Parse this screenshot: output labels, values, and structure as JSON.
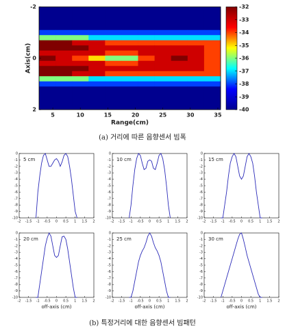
{
  "chart_data": [
    {
      "type": "heatmap",
      "xlabel": "Range(cm)",
      "ylabel": "Axis(cm)",
      "x": [
        4,
        7,
        10,
        13,
        16,
        19,
        22,
        25,
        28,
        31,
        34
      ],
      "y": [
        -1.8,
        -1.6,
        -1.4,
        -1.2,
        -1.0,
        -0.8,
        -0.6,
        -0.4,
        -0.2,
        0,
        0.2,
        0.4,
        0.6,
        0.8,
        1.0,
        1.2,
        1.4,
        1.6,
        1.8
      ],
      "values": [
        [
          -40,
          -40,
          -40,
          -40,
          -40,
          -40,
          -40,
          -40,
          -40,
          -40,
          -40
        ],
        [
          -40,
          -40,
          -40,
          -40,
          -40,
          -40,
          -40,
          -40,
          -40,
          -40,
          -40
        ],
        [
          -40,
          -40,
          -40,
          -40,
          -40,
          -40,
          -40,
          -40,
          -40,
          -40,
          -40
        ],
        [
          -40,
          -40,
          -40,
          -40,
          -40,
          -40,
          -40,
          -40,
          -40,
          -40,
          -40
        ],
        [
          -38,
          -38,
          -38,
          -38,
          -38,
          -38,
          -38,
          -38,
          -38,
          -38,
          -38
        ],
        [
          -36,
          -36,
          -36,
          -37,
          -37,
          -37,
          -37,
          -37,
          -37,
          -37,
          -37
        ],
        [
          -32,
          -32,
          -33,
          -33,
          -34,
          -34,
          -34,
          -34,
          -34,
          -34,
          -34
        ],
        [
          -32,
          -32,
          -32,
          -33,
          -33,
          -33,
          -33,
          -33,
          -33,
          -33,
          -34
        ],
        [
          -33,
          -33,
          -33,
          -33,
          -34,
          -34,
          -33,
          -33,
          -33,
          -33,
          -34
        ],
        [
          -32,
          -33,
          -34,
          -35,
          -36,
          -36,
          -34,
          -33,
          -32,
          -33,
          -34
        ],
        [
          -33,
          -33,
          -33,
          -33,
          -34,
          -34,
          -33,
          -33,
          -33,
          -33,
          -34
        ],
        [
          -32,
          -32,
          -32,
          -33,
          -33,
          -33,
          -33,
          -33,
          -33,
          -33,
          -34
        ],
        [
          -32,
          -32,
          -33,
          -33,
          -34,
          -34,
          -34,
          -34,
          -34,
          -34,
          -34
        ],
        [
          -36,
          -36,
          -36,
          -37,
          -37,
          -37,
          -37,
          -37,
          -37,
          -37,
          -37
        ],
        [
          -38,
          -38,
          -38,
          -38,
          -38,
          -38,
          -38,
          -38,
          -38,
          -38,
          -38
        ],
        [
          -40,
          -40,
          -40,
          -40,
          -40,
          -40,
          -40,
          -40,
          -40,
          -40,
          -40
        ],
        [
          -40,
          -40,
          -40,
          -40,
          -40,
          -40,
          -40,
          -40,
          -40,
          -40,
          -40
        ],
        [
          -40,
          -40,
          -40,
          -40,
          -40,
          -40,
          -40,
          -40,
          -40,
          -40,
          -40
        ],
        [
          -40,
          -40,
          -40,
          -40,
          -40,
          -40,
          -40,
          -40,
          -40,
          -40,
          -40
        ]
      ],
      "xlim": [
        2.5,
        35.5
      ],
      "xticks": [
        5,
        10,
        15,
        20,
        25,
        30,
        35
      ],
      "ylim": [
        -2,
        2
      ],
      "yticks": [
        -2,
        0,
        2
      ],
      "y_inverted": true,
      "colorscale": [
        "#00008f",
        "#0000ff",
        "#00ffff",
        "#ffff00",
        "#ff0000",
        "#800000"
      ],
      "clim": [
        -40,
        -32
      ],
      "cticks": [
        -32,
        -33,
        -34,
        -35,
        -36,
        -37,
        -38,
        -39,
        -40
      ]
    },
    {
      "type": "line",
      "label": "5 cm",
      "color": "#2a2ab8",
      "x": [
        -1.1,
        -1,
        -0.9,
        -0.8,
        -0.7,
        -0.6,
        -0.5,
        -0.4,
        -0.3,
        -0.2,
        -0.1,
        0,
        0.1,
        0.2,
        0.3,
        0.4,
        0.5,
        0.6,
        0.7,
        0.8,
        0.9,
        1,
        1.1
      ],
      "values": [
        -10,
        -6,
        -3.5,
        -1.5,
        -0.3,
        0,
        -1,
        -2,
        -2,
        -1.5,
        -1,
        -0.8,
        -1.2,
        -2,
        -1.3,
        -0.3,
        0,
        -0.5,
        -2,
        -4,
        -6.5,
        -9,
        -10
      ],
      "xlim": [
        -2,
        2
      ],
      "xticks": [
        -2,
        -1.5,
        -1,
        -0.5,
        0,
        0.5,
        1,
        1.5,
        2
      ],
      "ylim": [
        -10,
        0
      ],
      "yticks": [
        0,
        -1,
        -2,
        -3,
        -4,
        -5,
        -6,
        -7,
        -8,
        -9,
        -10
      ]
    },
    {
      "type": "line",
      "label": "10 cm",
      "color": "#2a2ab8",
      "x": [
        -1.1,
        -1,
        -0.9,
        -0.8,
        -0.7,
        -0.6,
        -0.5,
        -0.4,
        -0.3,
        -0.2,
        -0.1,
        0,
        0.1,
        0.2,
        0.3,
        0.4,
        0.5,
        0.6,
        0.7,
        0.8,
        0.9,
        1,
        1.1
      ],
      "values": [
        -10,
        -8,
        -5,
        -2.5,
        -0.8,
        0,
        -0.3,
        -1.5,
        -2.5,
        -2.3,
        -1.2,
        -1,
        -1.2,
        -2.3,
        -2.5,
        -1.5,
        -0.3,
        0,
        -0.8,
        -2.5,
        -5,
        -8,
        -10
      ],
      "xlim": [
        -2,
        2
      ],
      "xticks": [
        -2,
        -1.5,
        -1,
        -0.5,
        0,
        0.5,
        1,
        1.5,
        2
      ],
      "ylim": [
        -10,
        0
      ],
      "yticks": [
        0,
        -1,
        -2,
        -3,
        -4,
        -5,
        -6,
        -7,
        -8,
        -9,
        -10
      ]
    },
    {
      "type": "line",
      "label": "15 cm",
      "color": "#2a2ab8",
      "x": [
        -1.1,
        -1,
        -0.9,
        -0.8,
        -0.7,
        -0.6,
        -0.5,
        -0.4,
        -0.3,
        -0.2,
        -0.1,
        0,
        0.1,
        0.2,
        0.3,
        0.4,
        0.5,
        0.6,
        0.7,
        0.8,
        0.9,
        1,
        1.1
      ],
      "values": [
        -10,
        -10,
        -8,
        -6,
        -3.5,
        -1.5,
        -0.5,
        0,
        -0.5,
        -2,
        -3.5,
        -4,
        -3.5,
        -2,
        -0.5,
        0,
        -0.5,
        -1.5,
        -3.5,
        -6,
        -8,
        -10,
        -10
      ],
      "xlim": [
        -2,
        2
      ],
      "xticks": [
        -2,
        -1.5,
        -1,
        -0.5,
        0,
        0.5,
        1,
        1.5,
        2
      ],
      "ylim": [
        -10,
        0
      ],
      "yticks": [
        0,
        -1,
        -2,
        -3,
        -4,
        -5,
        -6,
        -7,
        -8,
        -9,
        -10
      ]
    },
    {
      "type": "line",
      "label": "20 cm",
      "color": "#2a2ab8",
      "xlabel": "off-axis (cm)",
      "x": [
        -1.1,
        -1,
        -0.9,
        -0.8,
        -0.7,
        -0.6,
        -0.5,
        -0.4,
        -0.3,
        -0.2,
        -0.1,
        0,
        0.1,
        0.2,
        0.3,
        0.4,
        0.5,
        0.6,
        0.7,
        0.8,
        0.9,
        1,
        1.1
      ],
      "values": [
        -10,
        -10,
        -8,
        -6,
        -4,
        -2,
        -0.8,
        0,
        -0.5,
        -2,
        -3.5,
        -3.8,
        -3.5,
        -2,
        -0.6,
        -0.5,
        -1,
        -2.5,
        -4.5,
        -6.5,
        -8.5,
        -10,
        -10
      ],
      "xlim": [
        -2,
        2
      ],
      "xticks": [
        -2,
        -1.5,
        -1,
        -0.5,
        0,
        0.5,
        1,
        1.5,
        2
      ],
      "ylim": [
        -10,
        0
      ],
      "yticks": [
        0,
        -1,
        -2,
        -3,
        -4,
        -5,
        -6,
        -7,
        -8,
        -9,
        -10
      ]
    },
    {
      "type": "line",
      "label": "25 cm",
      "color": "#2a2ab8",
      "xlabel": "off-axis (cm)",
      "x": [
        -1.1,
        -1,
        -0.9,
        -0.8,
        -0.7,
        -0.6,
        -0.5,
        -0.4,
        -0.3,
        -0.2,
        -0.1,
        0,
        0.1,
        0.2,
        0.3,
        0.4,
        0.5,
        0.6,
        0.7,
        0.8,
        0.9,
        1,
        1.1
      ],
      "values": [
        -10,
        -10,
        -9,
        -7.5,
        -6,
        -4.5,
        -3.5,
        -2.8,
        -2.3,
        -1.5,
        -0.5,
        0,
        -0.5,
        -1.5,
        -2.3,
        -2.8,
        -3.5,
        -4.5,
        -6,
        -7.5,
        -9,
        -10,
        -10
      ],
      "xlim": [
        -2,
        2
      ],
      "xticks": [
        -2,
        -1.5,
        -1,
        -0.5,
        0,
        0.5,
        1,
        1.5,
        2
      ],
      "ylim": [
        -10,
        0
      ],
      "yticks": [
        0,
        -1,
        -2,
        -3,
        -4,
        -5,
        -6,
        -7,
        -8,
        -9,
        -10
      ]
    },
    {
      "type": "line",
      "label": "30 cm",
      "color": "#2a2ab8",
      "xlabel": "off-axis (cm)",
      "x": [
        -1.1,
        -1,
        -0.9,
        -0.8,
        -0.7,
        -0.6,
        -0.5,
        -0.4,
        -0.3,
        -0.2,
        -0.1,
        0,
        0.1,
        0.2,
        0.3,
        0.4,
        0.5,
        0.6,
        0.7,
        0.8,
        0.9,
        1,
        1.1
      ],
      "values": [
        -10,
        -9,
        -8,
        -7,
        -6,
        -5,
        -4,
        -3,
        -2,
        -1,
        -0.2,
        0,
        -1,
        -2.2,
        -3.5,
        -4.5,
        -5.5,
        -6.5,
        -7.5,
        -8.5,
        -9.5,
        -10,
        -10
      ],
      "xlim": [
        -2,
        2
      ],
      "xticks": [
        -2,
        -1.5,
        -1,
        -0.5,
        0,
        0.5,
        1,
        1.5,
        2
      ],
      "ylim": [
        -10,
        0
      ],
      "yticks": [
        0,
        -1,
        -2,
        -3,
        -4,
        -5,
        -6,
        -7,
        -8,
        -9,
        -10
      ]
    }
  ],
  "captions": [
    "(a) 거리에 따른 음향센서 빔폭",
    "(b) 특정거리에 대한 음향센서 빔패턴"
  ]
}
